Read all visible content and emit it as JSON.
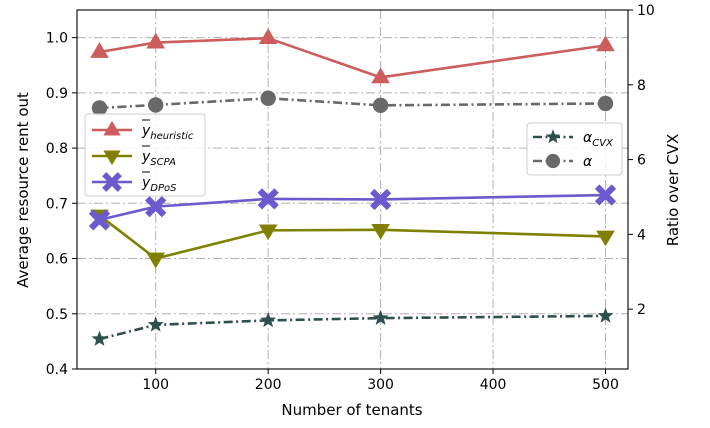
{
  "chart_data": {
    "type": "line",
    "title": "",
    "xlabel": "Number of tenants",
    "ylabel": "Average resource rent out",
    "y2label": "Ratio over CVX",
    "xlim": [
      30,
      520
    ],
    "ylim": [
      0.4,
      1.05
    ],
    "y2lim": [
      0.4,
      10
    ],
    "x_ticks": [
      100,
      200,
      300,
      400,
      500
    ],
    "y_ticks": [
      0.4,
      0.5,
      0.6,
      0.7,
      0.8,
      0.9,
      1.0
    ],
    "y_tick_labels": [
      "0.4",
      "0.5",
      "0.6",
      "0.7",
      "0.8",
      "0.9",
      "1.0"
    ],
    "y2_ticks": [
      2,
      4,
      6,
      8,
      10
    ],
    "grid": true,
    "legends": [
      {
        "placement": "center-left",
        "entries": [
          "heuristic",
          "SCPA",
          "DPoS"
        ]
      },
      {
        "placement": "right",
        "entries": [
          "CVX",
          "alpha"
        ]
      }
    ],
    "series": [
      {
        "key": "heuristic",
        "name_main": "y",
        "name_sub": "heuristic",
        "axis": "left",
        "color": "#cd5c5c",
        "linestyle": "solid",
        "marker": "triangle-up",
        "x": [
          50,
          100,
          200,
          300,
          500
        ],
        "values": [
          0.974,
          0.991,
          0.999,
          0.928,
          0.986
        ]
      },
      {
        "key": "SCPA",
        "name_main": "y",
        "name_sub": "SCPA",
        "axis": "left",
        "color": "#808000",
        "linestyle": "solid",
        "marker": "triangle-down",
        "x": [
          50,
          100,
          200,
          300,
          500
        ],
        "values": [
          0.678,
          0.6,
          0.651,
          0.652,
          0.64
        ]
      },
      {
        "key": "DPoS",
        "name_main": "y",
        "name_sub": "DPoS",
        "axis": "left",
        "color": "#6a5acd",
        "linestyle": "solid",
        "marker": "x-filled",
        "x": [
          50,
          100,
          200,
          300,
          500
        ],
        "values": [
          0.67,
          0.694,
          0.708,
          0.707,
          0.715
        ]
      },
      {
        "key": "CVX",
        "name_main": "α",
        "name_sub": "CVX",
        "axis": "right",
        "color": "#2f4f4f",
        "linestyle": "dashdot",
        "marker": "star",
        "x": [
          50,
          100,
          200,
          300,
          500
        ],
        "values": [
          1.2,
          1.58,
          1.7,
          1.76,
          1.82
        ]
      },
      {
        "key": "alpha",
        "name_main": "α",
        "name_sub": "",
        "axis": "right",
        "color": "#696969",
        "linestyle": "dashdot",
        "marker": "circle",
        "x": [
          50,
          100,
          200,
          300,
          500
        ],
        "values": [
          7.38,
          7.46,
          7.64,
          7.45,
          7.5
        ]
      }
    ]
  }
}
